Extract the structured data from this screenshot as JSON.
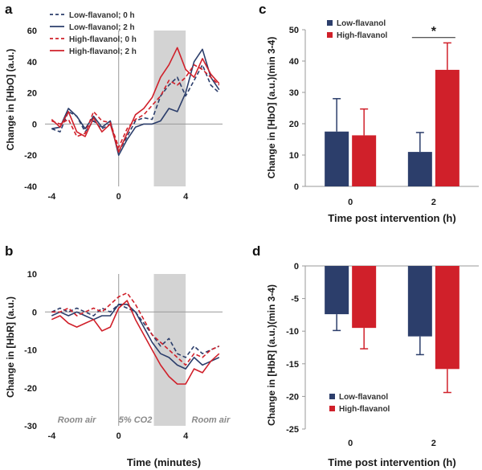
{
  "colors": {
    "low": "#2c3e6b",
    "high": "#d0202a",
    "shade": "#d3d3d3",
    "axis": "#999999"
  },
  "chart_data": [
    {
      "id": "a",
      "panel_label": "a",
      "type": "line",
      "ylabel": "Change in [HbO] (a.u.)",
      "xlabel": "",
      "xlim": [
        -4.4,
        6.2
      ],
      "ylim": [
        -40,
        60
      ],
      "xticks": [
        -4,
        0,
        4
      ],
      "yticks": [
        -40,
        -20,
        0,
        20,
        40,
        60
      ],
      "shade": [
        2.1,
        4.0
      ],
      "legend_position": "top-left",
      "series": [
        {
          "name": "Low-flavanol; 0 h",
          "group": "low",
          "dashed": true,
          "x": [
            -4,
            -3.5,
            -3,
            -2.5,
            -2,
            -1.5,
            -1,
            -0.5,
            0,
            0.5,
            1,
            1.5,
            2,
            2.5,
            3,
            3.5,
            4,
            4.5,
            5,
            5.5,
            6
          ],
          "y": [
            -3,
            -5,
            8,
            5,
            -5,
            2,
            -3,
            0,
            -18,
            -8,
            2,
            4,
            3,
            18,
            25,
            30,
            18,
            28,
            38,
            25,
            20
          ]
        },
        {
          "name": "Low-flavanol; 2 h",
          "group": "low",
          "dashed": false,
          "x": [
            -4,
            -3.5,
            -3,
            -2.5,
            -2,
            -1.5,
            -1,
            -0.5,
            0,
            0.5,
            1,
            1.5,
            2,
            2.5,
            3,
            3.5,
            4,
            4.5,
            5,
            5.5,
            6
          ],
          "y": [
            -3,
            -2,
            10,
            5,
            -3,
            5,
            -2,
            2,
            -20,
            -10,
            -2,
            0,
            0,
            2,
            10,
            8,
            20,
            40,
            48,
            30,
            22
          ]
        },
        {
          "name": "High-flavanol; 0 h",
          "group": "high",
          "dashed": true,
          "x": [
            -4,
            -3.5,
            -3,
            -2.5,
            -2,
            -1.5,
            -1,
            -0.5,
            0,
            0.5,
            1,
            1.5,
            2,
            2.5,
            3,
            3.5,
            4,
            4.5,
            5,
            5.5,
            6
          ],
          "y": [
            2,
            0,
            3,
            -8,
            -6,
            8,
            2,
            1,
            -15,
            -3,
            3,
            6,
            12,
            18,
            28,
            25,
            30,
            38,
            35,
            30,
            25
          ]
        },
        {
          "name": "High-flavanol; 2 h",
          "group": "high",
          "dashed": false,
          "x": [
            -4,
            -3.5,
            -3,
            -2.5,
            -2,
            -1.5,
            -1,
            -0.5,
            0,
            0.5,
            1,
            1.5,
            2,
            2.5,
            3,
            3.5,
            4,
            4.5,
            5,
            5.5,
            6
          ],
          "y": [
            3,
            -2,
            8,
            -5,
            -8,
            4,
            -5,
            0,
            -18,
            -6,
            6,
            10,
            17,
            30,
            38,
            49,
            35,
            30,
            42,
            32,
            26
          ]
        }
      ]
    },
    {
      "id": "b",
      "panel_label": "b",
      "type": "line",
      "ylabel": "Change in [HbR] (a.u.)",
      "xlabel": "Time (minutes)",
      "xlim": [
        -4.4,
        6.2
      ],
      "ylim": [
        -30,
        10
      ],
      "xticks": [
        -4,
        0,
        4
      ],
      "yticks": [
        -30,
        -20,
        -10,
        0,
        10
      ],
      "shade": [
        2.1,
        4.0
      ],
      "annotations": [
        "Room air",
        "5% CO2",
        "Room air"
      ],
      "series": [
        {
          "name": "Low-flavanol; 0 h",
          "group": "low",
          "dashed": true,
          "x": [
            -4,
            -3.5,
            -3,
            -2.5,
            -2,
            -1.5,
            -1,
            -0.5,
            0,
            0.5,
            1,
            1.5,
            2,
            2.5,
            3,
            3.5,
            4,
            4.5,
            5,
            5.5,
            6
          ],
          "y": [
            0,
            1,
            0,
            1,
            0,
            -1,
            1,
            0,
            2,
            1,
            0,
            -3,
            -6,
            -9,
            -7,
            -11,
            -12,
            -9,
            -11,
            -10,
            -9
          ]
        },
        {
          "name": "Low-flavanol; 2 h",
          "group": "low",
          "dashed": false,
          "x": [
            -4,
            -3.5,
            -3,
            -2.5,
            -2,
            -1.5,
            -1,
            -0.5,
            0,
            0.5,
            1,
            1.5,
            2,
            2.5,
            3,
            3.5,
            4,
            4.5,
            5,
            5.5,
            6
          ],
          "y": [
            -1,
            0,
            -1,
            0,
            -1,
            -2,
            -1,
            -1,
            2,
            2,
            0,
            -4,
            -8,
            -11,
            -12,
            -14,
            -15,
            -12,
            -14,
            -13,
            -12
          ]
        },
        {
          "name": "High-flavanol; 0 h",
          "group": "high",
          "dashed": true,
          "x": [
            -4,
            -3.5,
            -3,
            -2.5,
            -2,
            -1.5,
            -1,
            -0.5,
            0,
            0.5,
            1,
            1.5,
            2,
            2.5,
            3,
            3.5,
            4,
            4.5,
            5,
            5.5,
            6
          ],
          "y": [
            0,
            0,
            1,
            -1,
            0,
            1,
            0,
            2,
            4,
            5,
            2,
            -2,
            -6,
            -8,
            -10,
            -12,
            -14,
            -11,
            -12,
            -10,
            -9
          ]
        },
        {
          "name": "High-flavanol; 2 h",
          "group": "high",
          "dashed": false,
          "x": [
            -4,
            -3.5,
            -3,
            -2.5,
            -2,
            -1.5,
            -1,
            -0.5,
            0,
            0.5,
            1,
            1.5,
            2,
            2.5,
            3,
            3.5,
            4,
            4.5,
            5,
            5.5,
            6
          ],
          "y": [
            -2,
            -1,
            -3,
            -4,
            -3,
            -2,
            -5,
            -4,
            1,
            3,
            -2,
            -6,
            -10,
            -14,
            -17,
            -19,
            -19,
            -15,
            -16,
            -13,
            -11
          ]
        }
      ]
    },
    {
      "id": "c",
      "panel_label": "c",
      "type": "bar",
      "ylabel": "Change in [HbO] (a.u.)(min 3-4)",
      "xlabel": "Time post intervention (h)",
      "categories": [
        "0",
        "2"
      ],
      "ylim": [
        0,
        50
      ],
      "yticks": [
        0,
        10,
        20,
        30,
        40,
        50
      ],
      "legend_position": "top-left",
      "significance": "*",
      "series": [
        {
          "name": "Low-flavanol",
          "group": "low",
          "values": [
            17.5,
            11
          ],
          "errors": [
            10.5,
            6.2
          ]
        },
        {
          "name": "High-flavanol",
          "group": "high",
          "values": [
            16.3,
            37.2
          ],
          "errors": [
            8.4,
            8.6
          ]
        }
      ]
    },
    {
      "id": "d",
      "panel_label": "d",
      "type": "bar",
      "ylabel": "Change in [HbR] (a.u.)(min 3-4)",
      "xlabel": "Time post intervention (h)",
      "categories": [
        "0",
        "2"
      ],
      "ylim": [
        -25,
        0
      ],
      "yticks": [
        -25,
        -20,
        -15,
        -10,
        -5,
        0
      ],
      "legend_position": "bottom-left",
      "series": [
        {
          "name": "Low-flavanol",
          "group": "low",
          "values": [
            -7.4,
            -10.8
          ],
          "errors": [
            2.5,
            2.8
          ]
        },
        {
          "name": "High-flavanol",
          "group": "high",
          "values": [
            -9.5,
            -15.8
          ],
          "errors": [
            3.2,
            3.6
          ]
        }
      ]
    }
  ]
}
